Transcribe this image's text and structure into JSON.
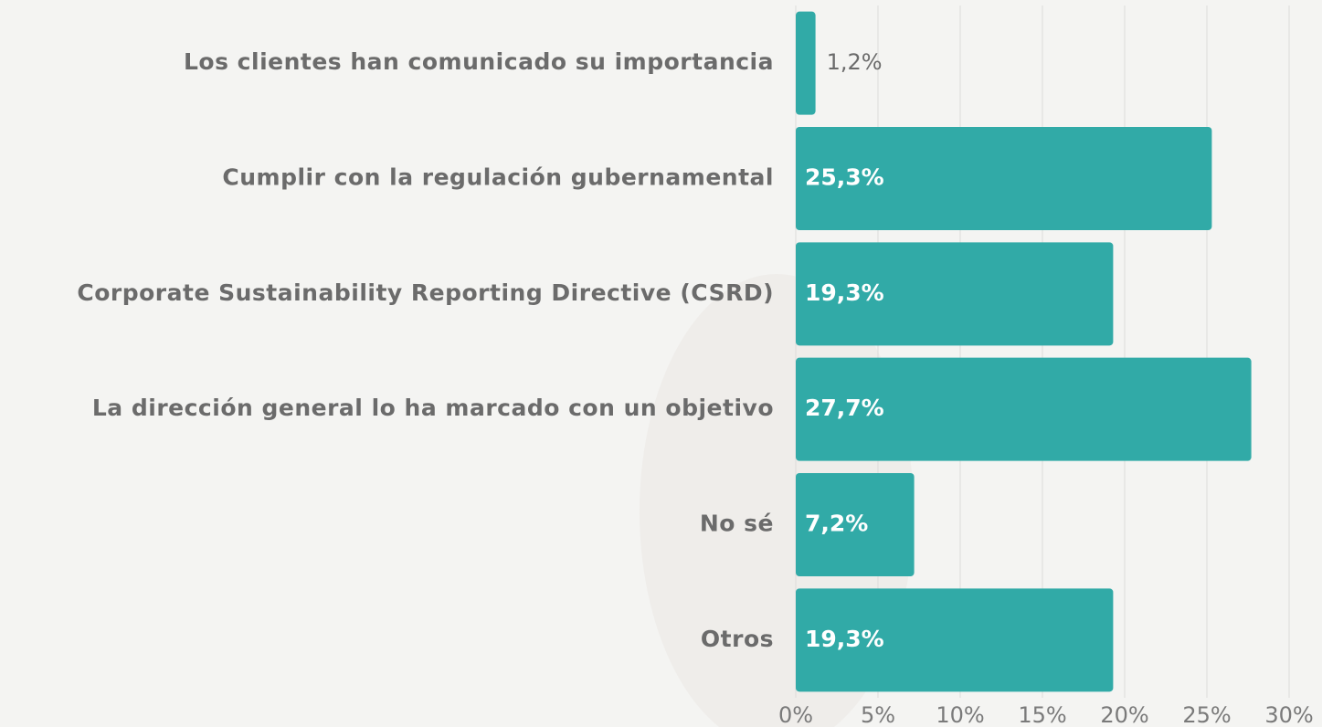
{
  "chart_data": {
    "type": "bar",
    "orientation": "horizontal",
    "categories": [
      "Los clientes han comunicado su importancia",
      "Cumplir con la regulación gubernamental",
      "Corporate Sustainability Reporting Directive (CSRD)",
      "La dirección general lo ha marcado con un objetivo",
      "No sé",
      "Otros"
    ],
    "values": [
      1.2,
      25.3,
      19.3,
      27.7,
      7.2,
      19.3
    ],
    "value_labels": [
      "1,2%",
      "25,3%",
      "19,3%",
      "27,7%",
      "7,2%",
      "19,3%"
    ],
    "color": "#31aaa7",
    "xlim": [
      0,
      30
    ],
    "xticks": [
      {
        "value": 0,
        "label": "0%"
      },
      {
        "value": 5,
        "label": "5%"
      },
      {
        "value": 10,
        "label": "10%"
      },
      {
        "value": 15,
        "label": "15%"
      },
      {
        "value": 20,
        "label": "20%"
      },
      {
        "value": 25,
        "label": "25%"
      },
      {
        "value": 30,
        "label": "30%"
      }
    ],
    "grid": true
  }
}
